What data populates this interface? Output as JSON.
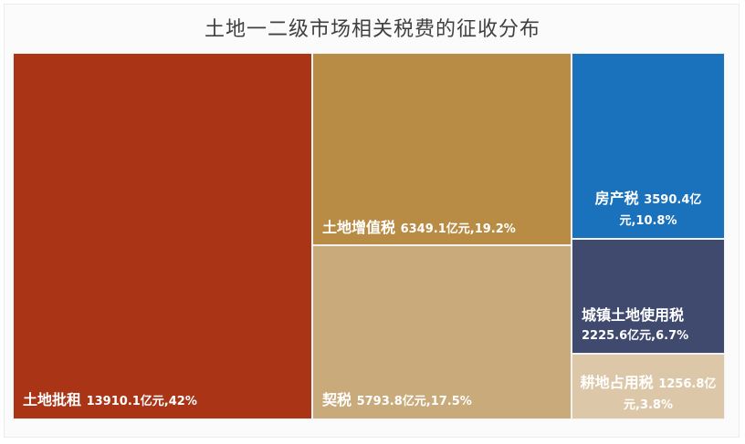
{
  "chart_data": {
    "type": "treemap",
    "title": "土地一二级市场相关税费的征收分布",
    "items": [
      {
        "name": "土地批租",
        "value": 13910.1,
        "unit": "亿元",
        "share": "42%",
        "value_text": "13910.1亿元,42%",
        "color": "#a93416"
      },
      {
        "name": "土地增值税",
        "value": 6349.1,
        "unit": "亿元",
        "share": "19.2%",
        "value_text": "6349.1亿元,19.2%",
        "color": "#b98c46"
      },
      {
        "name": "契税",
        "value": 5793.8,
        "unit": "亿元",
        "share": "17.5%",
        "value_text": "5793.8亿元,17.5%",
        "color": "#c9aa7b"
      },
      {
        "name": "房产税",
        "value": 3590.4,
        "unit": "亿元",
        "share": "10.8%",
        "value_text": "3590.4亿元,10.8%",
        "color": "#1a71bc"
      },
      {
        "name": "城镇土地使用税",
        "value": 2225.6,
        "unit": "亿元",
        "share": "6.7%",
        "value_text": "2225.6亿元,6.7%",
        "color": "#3f4a6e"
      },
      {
        "name": "耕地占用税",
        "value": 1256.8,
        "unit": "亿元",
        "share": "3.8%",
        "value_text": "1256.8亿元,3.8%",
        "color": "#dcc8a8"
      }
    ]
  }
}
